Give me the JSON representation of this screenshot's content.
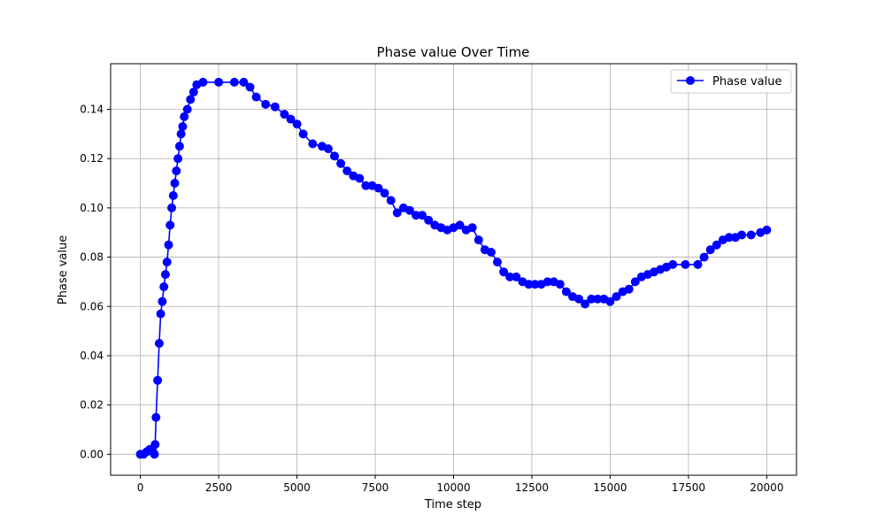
{
  "chart_data": {
    "type": "line",
    "title": "Phase value Over Time",
    "xlabel": "Time step",
    "ylabel": "Phase value",
    "xlim": [
      -950,
      20950
    ],
    "ylim": [
      -0.0085,
      0.1585
    ],
    "xticks": [
      0,
      2500,
      5000,
      7500,
      10000,
      12500,
      15000,
      17500,
      20000
    ],
    "xtick_labels": [
      "0",
      "2500",
      "5000",
      "7500",
      "10000",
      "12500",
      "15000",
      "17500",
      "20000"
    ],
    "yticks": [
      0.0,
      0.02,
      0.04,
      0.06,
      0.08,
      0.1,
      0.12,
      0.14
    ],
    "ytick_labels": [
      "0.00",
      "0.02",
      "0.04",
      "0.06",
      "0.08",
      "0.10",
      "0.12",
      "0.14"
    ],
    "grid": true,
    "legend_position": "top-right",
    "series": [
      {
        "name": "Phase value",
        "color": "#0000ff",
        "marker": "circle",
        "points": [
          [
            0,
            0.0
          ],
          [
            100,
            0.0
          ],
          [
            200,
            0.001
          ],
          [
            300,
            0.002
          ],
          [
            400,
            0.001
          ],
          [
            450,
            0.0
          ],
          [
            470,
            0.004
          ],
          [
            500,
            0.015
          ],
          [
            550,
            0.03
          ],
          [
            600,
            0.045
          ],
          [
            650,
            0.057
          ],
          [
            700,
            0.062
          ],
          [
            750,
            0.068
          ],
          [
            800,
            0.073
          ],
          [
            850,
            0.078
          ],
          [
            900,
            0.085
          ],
          [
            950,
            0.093
          ],
          [
            1000,
            0.1
          ],
          [
            1050,
            0.105
          ],
          [
            1100,
            0.11
          ],
          [
            1150,
            0.115
          ],
          [
            1200,
            0.12
          ],
          [
            1250,
            0.125
          ],
          [
            1300,
            0.13
          ],
          [
            1350,
            0.133
          ],
          [
            1400,
            0.137
          ],
          [
            1500,
            0.14
          ],
          [
            1600,
            0.144
          ],
          [
            1700,
            0.147
          ],
          [
            1800,
            0.15
          ],
          [
            2000,
            0.151
          ],
          [
            2500,
            0.151
          ],
          [
            3000,
            0.151
          ],
          [
            3300,
            0.151
          ],
          [
            3500,
            0.149
          ],
          [
            3700,
            0.145
          ],
          [
            4000,
            0.142
          ],
          [
            4300,
            0.141
          ],
          [
            4600,
            0.138
          ],
          [
            4800,
            0.136
          ],
          [
            5000,
            0.134
          ],
          [
            5200,
            0.13
          ],
          [
            5500,
            0.126
          ],
          [
            5800,
            0.125
          ],
          [
            6000,
            0.124
          ],
          [
            6200,
            0.121
          ],
          [
            6400,
            0.118
          ],
          [
            6600,
            0.115
          ],
          [
            6800,
            0.113
          ],
          [
            7000,
            0.112
          ],
          [
            7200,
            0.109
          ],
          [
            7400,
            0.109
          ],
          [
            7600,
            0.108
          ],
          [
            7800,
            0.106
          ],
          [
            8000,
            0.103
          ],
          [
            8200,
            0.098
          ],
          [
            8400,
            0.1
          ],
          [
            8600,
            0.099
          ],
          [
            8800,
            0.097
          ],
          [
            9000,
            0.097
          ],
          [
            9200,
            0.095
          ],
          [
            9400,
            0.093
          ],
          [
            9600,
            0.092
          ],
          [
            9800,
            0.091
          ],
          [
            10000,
            0.092
          ],
          [
            10200,
            0.093
          ],
          [
            10400,
            0.091
          ],
          [
            10600,
            0.092
          ],
          [
            10800,
            0.087
          ],
          [
            11000,
            0.083
          ],
          [
            11200,
            0.082
          ],
          [
            11400,
            0.078
          ],
          [
            11600,
            0.074
          ],
          [
            11800,
            0.072
          ],
          [
            12000,
            0.072
          ],
          [
            12200,
            0.07
          ],
          [
            12400,
            0.069
          ],
          [
            12600,
            0.069
          ],
          [
            12800,
            0.069
          ],
          [
            13000,
            0.07
          ],
          [
            13200,
            0.07
          ],
          [
            13400,
            0.069
          ],
          [
            13600,
            0.066
          ],
          [
            13800,
            0.064
          ],
          [
            14000,
            0.063
          ],
          [
            14200,
            0.061
          ],
          [
            14400,
            0.063
          ],
          [
            14600,
            0.063
          ],
          [
            14800,
            0.063
          ],
          [
            15000,
            0.062
          ],
          [
            15200,
            0.064
          ],
          [
            15400,
            0.066
          ],
          [
            15600,
            0.067
          ],
          [
            15800,
            0.07
          ],
          [
            16000,
            0.072
          ],
          [
            16200,
            0.073
          ],
          [
            16400,
            0.074
          ],
          [
            16600,
            0.075
          ],
          [
            16800,
            0.076
          ],
          [
            17000,
            0.077
          ],
          [
            17400,
            0.077
          ],
          [
            17800,
            0.077
          ],
          [
            18000,
            0.08
          ],
          [
            18200,
            0.083
          ],
          [
            18400,
            0.085
          ],
          [
            18600,
            0.087
          ],
          [
            18800,
            0.088
          ],
          [
            19000,
            0.088
          ],
          [
            19200,
            0.089
          ],
          [
            19500,
            0.089
          ],
          [
            19800,
            0.09
          ],
          [
            20000,
            0.091
          ]
        ]
      }
    ]
  }
}
